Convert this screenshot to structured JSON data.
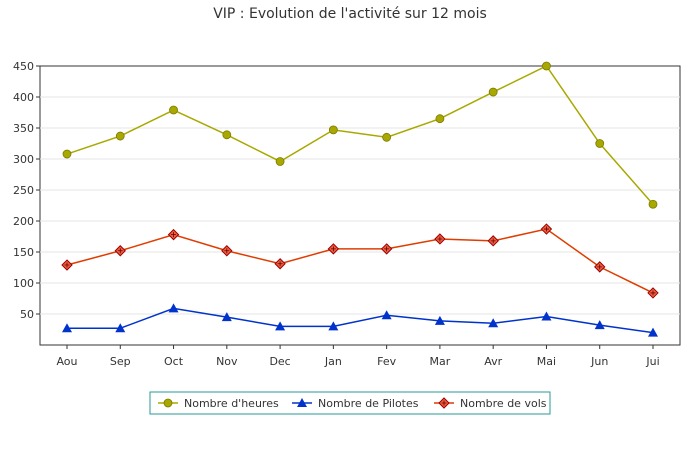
{
  "chart_data": {
    "type": "line",
    "title": "VIP : Evolution de l'activité sur 12 mois",
    "xlabel": "",
    "ylabel": "",
    "categories": [
      "Aou",
      "Sep",
      "Oct",
      "Nov",
      "Dec",
      "Jan",
      "Fev",
      "Mar",
      "Avr",
      "Mai",
      "Jun",
      "Jui"
    ],
    "ylim": [
      0,
      450
    ],
    "yticks": [
      50,
      100,
      150,
      200,
      250,
      300,
      350,
      400,
      450
    ],
    "grid": true,
    "legend_position": "bottom",
    "series": [
      {
        "name": "Nombre d'heures",
        "color": "#a8a800",
        "marker": "circle",
        "values": [
          308,
          337,
          379,
          339,
          296,
          347,
          335,
          365,
          408,
          450,
          325,
          227
        ]
      },
      {
        "name": "Nombre de Pilotes",
        "color": "#0033cc",
        "marker": "triangle",
        "values": [
          27,
          27,
          59,
          45,
          30,
          30,
          48,
          39,
          35,
          46,
          32,
          20
        ]
      },
      {
        "name": "Nombre de vols",
        "color": "#e03c00",
        "marker": "diamond",
        "values": [
          129,
          152,
          178,
          152,
          131,
          155,
          155,
          171,
          168,
          187,
          126,
          84
        ]
      }
    ]
  }
}
